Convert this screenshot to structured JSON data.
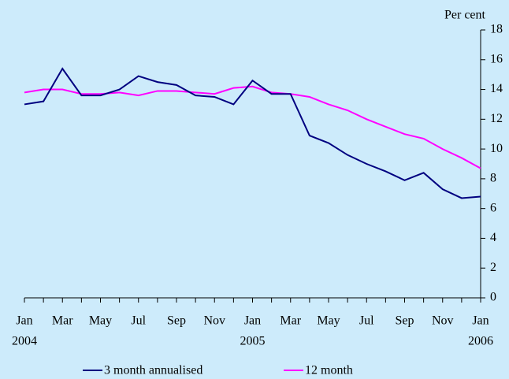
{
  "chart_data": {
    "type": "line",
    "y_axis_label": "Per cent",
    "categories": [
      "Jan",
      null,
      "Mar",
      null,
      "May",
      null,
      "Jul",
      null,
      "Sep",
      null,
      "Nov",
      null,
      "Jan",
      null,
      "Mar",
      null,
      "May",
      null,
      "Jul",
      null,
      "Sep",
      null,
      "Nov",
      null,
      "Jan"
    ],
    "years": [
      "2004",
      null,
      null,
      null,
      null,
      null,
      null,
      null,
      null,
      null,
      null,
      null,
      "2005",
      null,
      null,
      null,
      null,
      null,
      null,
      null,
      null,
      null,
      null,
      null,
      "2006"
    ],
    "series": [
      {
        "name": "3 month annualised",
        "color": "#000080",
        "values": [
          13.0,
          13.2,
          15.4,
          13.6,
          13.6,
          14.0,
          14.9,
          14.5,
          14.3,
          13.6,
          13.5,
          13.0,
          14.6,
          13.7,
          13.7,
          10.9,
          10.4,
          9.6,
          9.0,
          8.5,
          7.9,
          8.4,
          7.3,
          6.7,
          6.8
        ]
      },
      {
        "name": "12 month",
        "color": "#ff00ff",
        "values": [
          13.8,
          14.0,
          14.0,
          13.7,
          13.7,
          13.8,
          13.6,
          13.9,
          13.9,
          13.8,
          13.7,
          14.1,
          14.2,
          13.8,
          13.7,
          13.5,
          13.0,
          12.6,
          12.0,
          11.5,
          11.0,
          10.7,
          10.0,
          9.4,
          8.7
        ]
      }
    ],
    "ylim": [
      0,
      18
    ],
    "yticks": [
      0,
      2,
      4,
      6,
      8,
      10,
      12,
      14,
      16,
      18
    ]
  }
}
